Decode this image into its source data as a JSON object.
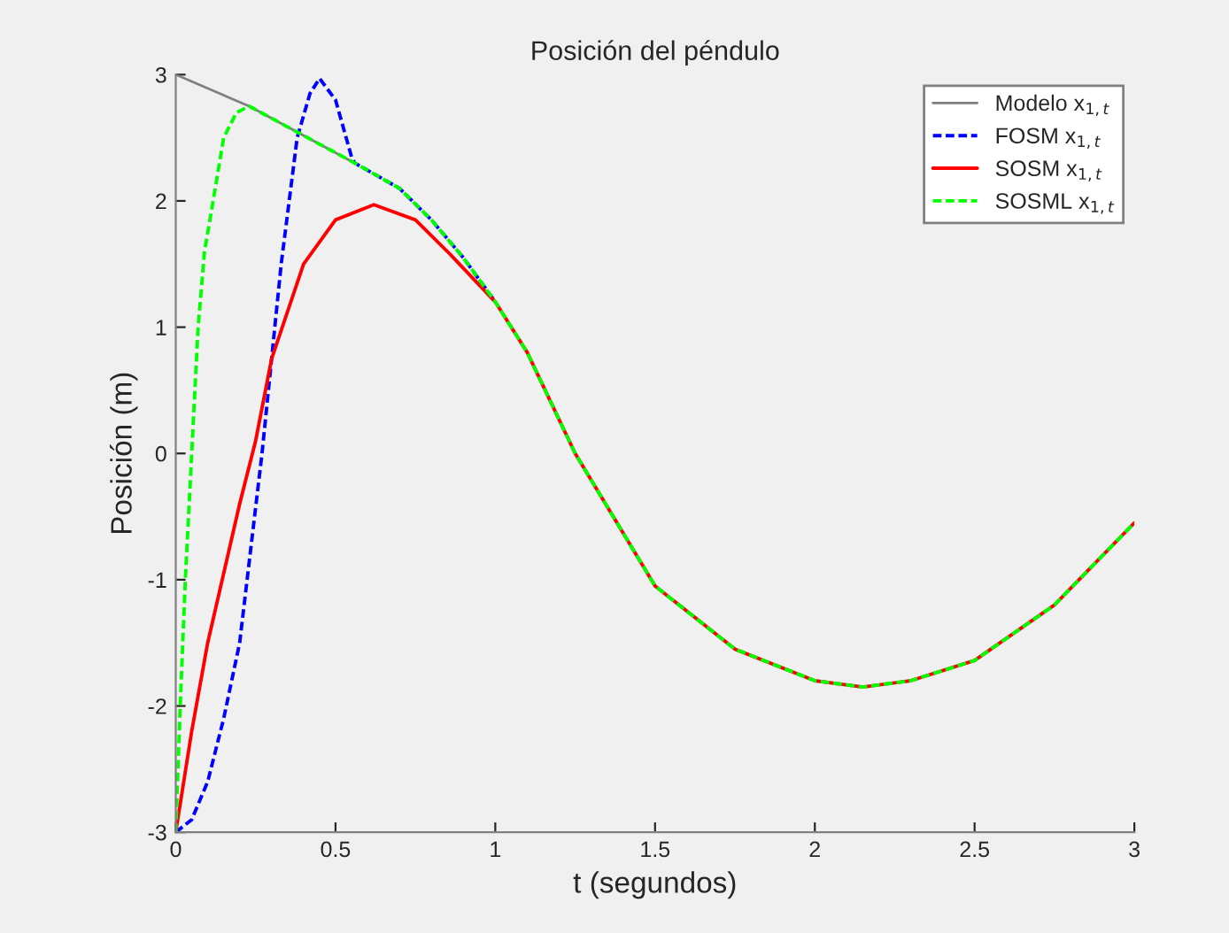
{
  "chart_data": {
    "type": "line",
    "title": "Posición del péndulo",
    "xlabel": "t (segundos)",
    "ylabel": "Posición (m)",
    "xlim": [
      0,
      3
    ],
    "xticks": [
      0,
      0.5,
      1,
      1.5,
      2,
      2.5,
      3
    ],
    "ylim": [
      -3,
      3
    ],
    "yticks": [
      {
        "value": -3,
        "label": "-3"
      },
      {
        "value": -2,
        "label": "-2"
      },
      {
        "value": -1,
        "label": "-1"
      },
      0,
      1,
      2,
      3
    ],
    "grid": false,
    "legend": "top right",
    "series": [
      {
        "name": "Modelo x$_{1,t}$",
        "color": "#808080",
        "line_style": "solid",
        "x": [
          0,
          0.23,
          0.56
        ],
        "values": [
          3,
          2.75,
          2.3
        ]
      },
      {
        "name": "FOSM x$_{1,t}$",
        "color": "#0000ff",
        "line_style": "dashed",
        "x": [
          0,
          0.05,
          0.1,
          0.15,
          0.2,
          0.27,
          0.33,
          0.38,
          0.42,
          0.45,
          0.5,
          0.55,
          0.56,
          0.7,
          0.8,
          0.9,
          1.0
        ],
        "values": [
          -3,
          -2.9,
          -2.6,
          -2.1,
          -1.5,
          0,
          1.5,
          2.5,
          2.85,
          2.97,
          2.8,
          2.35,
          2.3,
          2.1,
          1.85,
          1.55,
          1.2
        ]
      },
      {
        "name": "SOSM x$_{1,t}$",
        "color": "#ff0000",
        "line_style": "solid",
        "x": [
          0,
          0.05,
          0.1,
          0.2,
          0.25,
          0.3,
          0.4,
          0.5,
          0.62,
          0.75,
          0.85,
          1.0,
          1.1,
          1.25,
          1.5,
          1.75,
          2.0,
          2.15,
          2.3,
          2.5,
          2.75,
          3.0
        ],
        "values": [
          -3,
          -2.2,
          -1.5,
          -0.4,
          0.1,
          0.75,
          1.5,
          1.85,
          1.97,
          1.85,
          1.6,
          1.2,
          0.8,
          0,
          -1.05,
          -1.55,
          -1.8,
          -1.85,
          -1.8,
          -1.64,
          -1.2,
          -0.55
        ]
      },
      {
        "name": "SOSML x$_{1,t}$",
        "color": "#00ff00",
        "line_style": "dashed",
        "x": [
          0,
          0.014,
          0.03,
          0.05,
          0.07,
          0.09,
          0.117,
          0.15,
          0.19,
          0.23,
          0.56,
          0.7,
          0.8,
          0.9,
          1.0,
          1.1,
          1.25,
          1.5,
          1.75,
          2.0,
          2.15,
          2.3,
          2.5,
          2.75,
          3.0
        ],
        "values": [
          -3,
          -2,
          -1,
          0,
          1,
          1.6,
          2,
          2.5,
          2.7,
          2.75,
          2.3,
          2.1,
          1.85,
          1.55,
          1.2,
          0.8,
          0,
          -1.05,
          -1.55,
          -1.8,
          -1.85,
          -1.8,
          -1.64,
          -1.2,
          -0.55
        ]
      }
    ]
  }
}
